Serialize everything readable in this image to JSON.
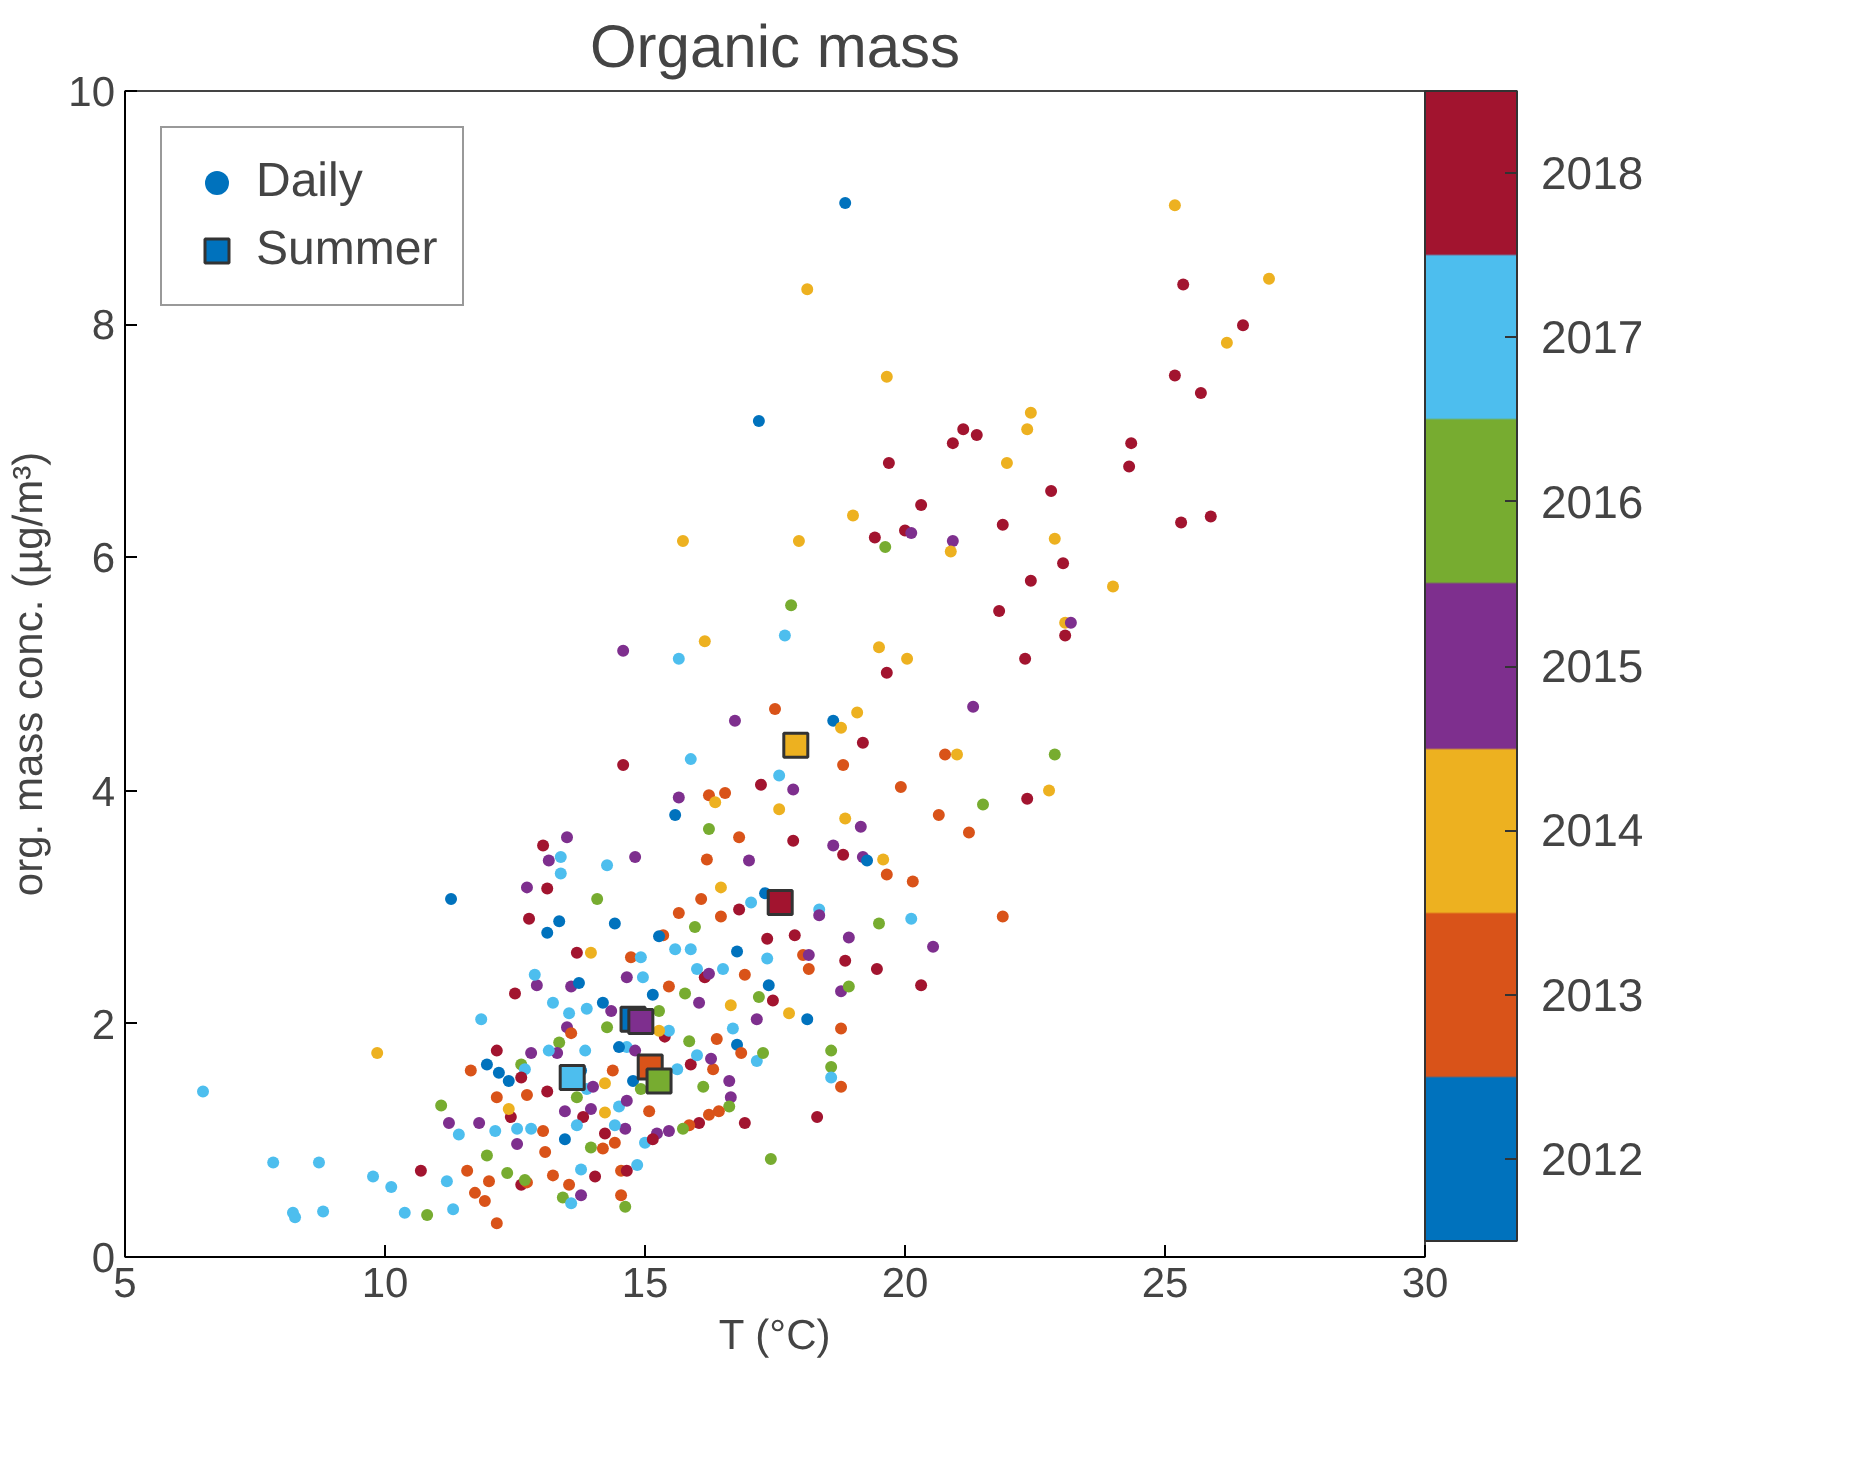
{
  "chart_data": {
    "type": "scatter",
    "title": "Organic mass",
    "xlabel": "T (°C)",
    "ylabel": "org. mass conc. (µg/m³)",
    "xlim": [
      5,
      30
    ],
    "xticks": [
      5,
      10,
      15,
      20,
      25,
      30
    ],
    "ylim": [
      0,
      10
    ],
    "yticks": [
      0,
      2,
      4,
      6,
      8,
      10
    ],
    "grid": false,
    "legend": "top left",
    "clim": [
      2011.5,
      2018.5
    ],
    "cticks": [
      2012,
      2013,
      2014,
      2015,
      2016,
      2017,
      2018
    ],
    "series": [
      {
        "name": "Daily",
        "marker": "circle",
        "x": [
          17.19,
          15.73,
          14.58,
          15.65,
          16.15,
          17.69,
          18.85,
          18.12,
          25.19,
          25.35,
          27.0,
          26.5,
          26.19,
          25.19,
          25.69,
          19.65,
          22.42,
          22.35,
          20.92,
          21.12,
          21.38,
          24.35,
          24.31,
          21.96,
          19.69,
          22.81,
          20.31,
          19.0,
          17.96,
          19.42,
          20.0,
          20.12,
          19.62,
          20.92,
          20.88,
          21.88,
          22.88,
          25.31,
          25.88,
          23.04,
          22.42,
          24.0,
          21.81,
          17.81,
          23.08,
          23.19,
          23.08,
          19.5,
          20.04,
          22.31,
          19.65,
          17.5,
          18.62,
          18.77,
          19.08,
          21.31,
          19.19,
          18.81,
          20.77,
          21.0,
          22.88,
          17.58,
          17.85,
          19.92,
          22.35,
          22.77,
          21.5,
          17.58,
          20.65,
          18.85,
          19.15,
          21.23,
          17.85,
          18.62,
          18.81,
          19.19,
          19.27,
          19.58,
          19.65,
          20.15,
          18.35,
          18.35,
          20.12,
          19.5,
          21.88,
          17.88,
          18.92,
          20.54,
          18.04,
          18.15,
          18.85,
          18.15,
          19.46,
          20.31,
          18.77,
          18.92,
          17.46,
          17.38,
          17.77,
          18.12,
          18.77,
          18.58,
          18.58,
          18.58,
          18.77,
          18.31,
          17.42,
          6.5,
          9.85,
          7.85,
          8.73,
          8.23,
          8.27,
          8.81,
          9.77,
          10.12,
          10.38,
          10.81,
          11.31,
          10.69,
          11.19,
          11.08,
          11.85,
          11.27,
          11.23,
          11.42,
          11.81,
          11.65,
          11.58,
          11.73,
          11.92,
          11.96,
          12.15,
          12.15,
          11.96,
          12.12,
          12.15,
          12.19,
          12.38,
          12.35,
          12.62,
          12.73,
          12.0,
          13.04,
          13.15,
          13.38,
          13.38,
          13.5,
          12.73,
          13.12,
          12.77,
          13.35,
          13.12,
          14.81,
          14.27,
          14.08,
          14.42,
          14.58,
          15.88,
          16.73,
          15.58,
          15.65,
          16.23,
          16.54,
          16.35,
          17.23,
          16.23,
          16.81,
          16.19,
          17.0,
          16.46,
          16.08,
          17.31,
          17.04,
          16.81,
          16.46,
          15.65,
          15.96,
          15.35,
          15.27,
          17.35,
          15.58,
          15.88,
          16.77,
          17.35,
          13.69,
          13.96,
          14.73,
          14.92,
          14.96,
          14.65,
          15.77,
          16.15,
          16.23,
          16.0,
          16.92,
          16.5,
          17.19,
          15.46,
          15.15,
          16.04,
          16.65,
          17.15,
          16.77,
          16.85,
          17.15,
          17.27,
          16.69,
          16.38,
          16.31,
          16.27,
          15.88,
          16.0,
          16.12,
          16.62,
          16.65,
          16.62,
          16.42,
          16.23,
          16.04,
          15.85,
          15.73,
          16.92,
          15.62,
          15.38,
          15.27,
          15.46,
          15.85,
          15.27,
          14.65,
          14.81,
          14.5,
          14.27,
          14.35,
          14.19,
          13.88,
          13.58,
          13.73,
          13.54,
          13.23,
          12.92,
          12.88,
          12.5,
          13.5,
          13.35,
          13.58,
          13.31,
          13.15,
          12.81,
          12.62,
          12.69,
          12.62,
          13.85,
          13.88,
          13.77,
          14.38,
          14.23,
          14.0,
          13.69,
          14.77,
          14.5,
          14.65,
          14.92,
          15.08,
          14.62,
          14.42,
          13.96,
          13.81,
          14.23,
          13.46,
          13.69,
          14.23,
          14.42,
          13.96,
          14.19,
          15.0,
          15.23,
          15.46,
          15.15,
          13.46,
          13.04,
          13.08,
          12.81,
          12.54,
          12.54,
          12.42,
          12.38,
          12.73,
          13.12,
          13.23,
          13.77,
          14.04,
          14.54,
          14.65,
          14.85,
          14.54,
          14.62,
          13.42,
          13.58,
          13.54,
          13.77,
          12.69
        ],
        "values": [
          7.17,
          6.14,
          5.2,
          5.13,
          5.28,
          5.33,
          9.04,
          8.3,
          9.02,
          8.34,
          8.39,
          7.99,
          7.84,
          7.56,
          7.41,
          7.55,
          7.24,
          7.1,
          6.98,
          7.1,
          7.05,
          6.98,
          6.78,
          6.81,
          6.81,
          6.57,
          6.45,
          6.36,
          6.14,
          6.17,
          6.23,
          6.21,
          6.09,
          6.14,
          6.05,
          6.28,
          6.16,
          6.3,
          6.35,
          5.95,
          5.8,
          5.75,
          5.54,
          5.59,
          5.44,
          5.44,
          5.33,
          5.23,
          5.13,
          5.13,
          5.01,
          4.7,
          4.6,
          4.54,
          4.67,
          4.72,
          4.41,
          4.22,
          4.31,
          4.31,
          4.31,
          4.13,
          4.01,
          4.03,
          3.93,
          4.0,
          3.88,
          3.84,
          3.79,
          3.76,
          3.69,
          3.64,
          3.57,
          3.53,
          3.45,
          3.43,
          3.4,
          3.41,
          3.28,
          3.22,
          2.98,
          2.93,
          2.9,
          2.86,
          2.92,
          2.76,
          2.74,
          2.66,
          2.59,
          2.59,
          2.54,
          2.47,
          2.47,
          2.33,
          2.28,
          2.32,
          2.2,
          2.33,
          2.09,
          2.04,
          1.96,
          1.77,
          1.63,
          1.54,
          1.46,
          1.2,
          0.84,
          1.42,
          1.75,
          0.81,
          0.81,
          0.38,
          0.34,
          0.39,
          0.69,
          0.6,
          0.38,
          0.36,
          0.41,
          0.74,
          0.65,
          1.3,
          2.04,
          3.07,
          1.15,
          1.05,
          1.15,
          1.6,
          0.74,
          0.55,
          0.48,
          0.87,
          0.29,
          1.77,
          1.65,
          1.08,
          1.37,
          1.58,
          1.51,
          0.72,
          0.62,
          0.64,
          0.65,
          3.53,
          3.4,
          3.43,
          3.29,
          3.6,
          3.17,
          3.16,
          2.9,
          2.88,
          2.78,
          3.43,
          3.36,
          3.07,
          2.86,
          4.22,
          4.27,
          4.6,
          3.79,
          3.94,
          3.96,
          3.98,
          3.9,
          4.05,
          3.67,
          3.6,
          3.41,
          3.4,
          3.17,
          3.07,
          3.12,
          3.04,
          2.98,
          2.92,
          2.95,
          2.83,
          2.76,
          2.75,
          2.73,
          2.64,
          2.64,
          2.62,
          2.56,
          2.61,
          2.61,
          2.57,
          2.57,
          2.4,
          2.4,
          2.26,
          2.4,
          2.43,
          2.47,
          2.42,
          2.47,
          2.23,
          2.32,
          2.25,
          2.18,
          2.16,
          2.04,
          1.82,
          1.75,
          1.68,
          1.75,
          1.96,
          1.87,
          1.61,
          1.7,
          1.65,
          1.73,
          1.46,
          1.51,
          1.37,
          1.29,
          1.25,
          1.22,
          1.15,
          1.13,
          1.1,
          1.15,
          1.61,
          1.89,
          2.11,
          1.94,
          1.85,
          1.94,
          1.8,
          1.77,
          1.8,
          1.97,
          2.11,
          2.18,
          2.13,
          2.32,
          2.35,
          2.09,
          2.18,
          2.33,
          2.42,
          2.26,
          1.97,
          1.84,
          1.92,
          1.75,
          1.77,
          1.75,
          1.65,
          1.61,
          1.54,
          1.77,
          1.44,
          1.6,
          1.6,
          1.49,
          1.46,
          1.37,
          1.51,
          1.29,
          1.34,
          1.44,
          1.25,
          1.1,
          1.13,
          1.27,
          1.2,
          1.24,
          1.25,
          1.13,
          1.06,
          0.98,
          0.94,
          0.93,
          0.98,
          1.06,
          1.08,
          1.01,
          1.01,
          1.08,
          0.9,
          1.1,
          1.1,
          0.97,
          1.2,
          1.27,
          1.39,
          1.42,
          0.7,
          0.75,
          0.69,
          0.74,
          0.74,
          0.79,
          0.53,
          0.43,
          0.51,
          0.46,
          0.62,
          0.53,
          0.66
        ],
        "colors": [
          "#0072bd",
          "#edb120",
          "#7e2f8e",
          "#4dbeee",
          "#edb120",
          "#4dbeee",
          "#0072bd",
          "#edb120",
          "#edb120",
          "#a2142f",
          "#edb120",
          "#a2142f",
          "#edb120",
          "#a2142f",
          "#a2142f",
          "#edb120",
          "#edb120",
          "#edb120",
          "#a2142f",
          "#a2142f",
          "#a2142f",
          "#a2142f",
          "#a2142f",
          "#edb120",
          "#a2142f",
          "#a2142f",
          "#a2142f",
          "#edb120",
          "#edb120",
          "#a2142f",
          "#a2142f",
          "#7e2f8e",
          "#77ac30",
          "#7e2f8e",
          "#edb120",
          "#a2142f",
          "#edb120",
          "#a2142f",
          "#a2142f",
          "#a2142f",
          "#a2142f",
          "#edb120",
          "#a2142f",
          "#77ac30",
          "#edb120",
          "#7e2f8e",
          "#a2142f",
          "#edb120",
          "#edb120",
          "#a2142f",
          "#a2142f",
          "#d95319",
          "#0072bd",
          "#edb120",
          "#edb120",
          "#7e2f8e",
          "#a2142f",
          "#d95319",
          "#d95319",
          "#edb120",
          "#77ac30",
          "#4dbeee",
          "#7e2f8e",
          "#d95319",
          "#a2142f",
          "#edb120",
          "#77ac30",
          "#edb120",
          "#d95319",
          "#edb120",
          "#7e2f8e",
          "#d95319",
          "#a2142f",
          "#7e2f8e",
          "#a2142f",
          "#7e2f8e",
          "#0072bd",
          "#edb120",
          "#d95319",
          "#d95319",
          "#4dbeee",
          "#7e2f8e",
          "#4dbeee",
          "#77ac30",
          "#d95319",
          "#a2142f",
          "#7e2f8e",
          "#7e2f8e",
          "#d95319",
          "#7e2f8e",
          "#a2142f",
          "#d95319",
          "#a2142f",
          "#a2142f",
          "#7e2f8e",
          "#77ac30",
          "#a2142f",
          "#0072bd",
          "#edb120",
          "#0072bd",
          "#d95319",
          "#77ac30",
          "#77ac30",
          "#4dbeee",
          "#d95319",
          "#a2142f",
          "#77ac30",
          "#4dbeee",
          "#edb120",
          "#4dbeee",
          "#4dbeee",
          "#4dbeee",
          "#4dbeee",
          "#4dbeee",
          "#4dbeee",
          "#4dbeee",
          "#4dbeee",
          "#77ac30",
          "#4dbeee",
          "#a2142f",
          "#4dbeee",
          "#77ac30",
          "#4dbeee",
          "#0072bd",
          "#7e2f8e",
          "#4dbeee",
          "#7e2f8e",
          "#d95319",
          "#d95319",
          "#d95319",
          "#d95319",
          "#77ac30",
          "#d95319",
          "#a2142f",
          "#0072bd",
          "#4dbeee",
          "#d95319",
          "#0072bd",
          "#0072bd",
          "#77ac30",
          "#a2142f",
          "#d95319",
          "#d95319",
          "#a2142f",
          "#7e2f8e",
          "#4dbeee",
          "#4dbeee",
          "#7e2f8e",
          "#7e2f8e",
          "#a2142f",
          "#a2142f",
          "#0072bd",
          "#0072bd",
          "#7e2f8e",
          "#4dbeee",
          "#77ac30",
          "#0072bd",
          "#a2142f",
          "#4dbeee",
          "#7e2f8e",
          "#0072bd",
          "#7e2f8e",
          "#d95319",
          "#d95319",
          "#edb120",
          "#a2142f",
          "#77ac30",
          "#d95319",
          "#d95319",
          "#7e2f8e",
          "#edb120",
          "#d95319",
          "#0072bd",
          "#4dbeee",
          "#a2142f",
          "#d95319",
          "#d95319",
          "#77ac30",
          "#d95319",
          "#0072bd",
          "#a2142f",
          "#4dbeee",
          "#4dbeee",
          "#0072bd",
          "#4dbeee",
          "#a2142f",
          "#edb120",
          "#d95319",
          "#4dbeee",
          "#4dbeee",
          "#7e2f8e",
          "#77ac30",
          "#a2142f",
          "#7e2f8e",
          "#4dbeee",
          "#d95319",
          "#4dbeee",
          "#77ac30",
          "#d95319",
          "#0072bd",
          "#7e2f8e",
          "#edb120",
          "#7e2f8e",
          "#0072bd",
          "#d95319",
          "#4dbeee",
          "#77ac30",
          "#4dbeee",
          "#d95319",
          "#d95319",
          "#7e2f8e",
          "#a2142f",
          "#4dbeee",
          "#77ac30",
          "#7e2f8e",
          "#7e2f8e",
          "#77ac30",
          "#d95319",
          "#d95319",
          "#a2142f",
          "#d95319",
          "#77ac30",
          "#a2142f",
          "#4dbeee",
          "#a2142f",
          "#77ac30",
          "#4dbeee",
          "#77ac30",
          "#edb120",
          "#4dbeee",
          "#7e2f8e",
          "#0072bd",
          "#77ac30",
          "#7e2f8e",
          "#0072bd",
          "#4dbeee",
          "#7e2f8e",
          "#0072bd",
          "#4dbeee",
          "#4dbeee",
          "#7e2f8e",
          "#4dbeee",
          "#a2142f",
          "#7e2f8e",
          "#77ac30",
          "#d95319",
          "#7e2f8e",
          "#4dbeee",
          "#7e2f8e",
          "#77ac30",
          "#4dbeee",
          "#a2142f",
          "#4dbeee",
          "#4dbeee",
          "#0072bd",
          "#d95319",
          "#edb120",
          "#7e2f8e",
          "#77ac30",
          "#0072bd",
          "#4dbeee",
          "#7e2f8e",
          "#77ac30",
          "#d95319",
          "#7e2f8e",
          "#4dbeee",
          "#7e2f8e",
          "#a2142f",
          "#edb120",
          "#7e2f8e",
          "#4dbeee",
          "#a2142f",
          "#d95319",
          "#77ac30",
          "#d95319",
          "#4dbeee",
          "#7e2f8e",
          "#7e2f8e",
          "#a2142f",
          "#0072bd",
          "#d95319",
          "#d95319",
          "#4dbeee",
          "#4dbeee",
          "#7e2f8e",
          "#a2142f",
          "#edb120",
          "#d95319",
          "#a2142f",
          "#d95319",
          "#4dbeee",
          "#a2142f",
          "#d95319",
          "#a2142f",
          "#4dbeee",
          "#d95319",
          "#77ac30",
          "#77ac30",
          "#4dbeee",
          "#d95319",
          "#7e2f8e",
          "#77ac30"
        ]
      },
      {
        "name": "Summer",
        "marker": "square",
        "x": [
          13.6,
          14.77,
          14.92,
          15.1,
          15.27,
          17.9,
          17.6
        ],
        "values": [
          1.54,
          2.04,
          2.02,
          1.63,
          1.51,
          4.39,
          3.04
        ],
        "colors": [
          "#4dbeee",
          "#0072bd",
          "#7e2f8e",
          "#d95319",
          "#77ac30",
          "#edb120",
          "#a2142f"
        ]
      }
    ]
  }
}
